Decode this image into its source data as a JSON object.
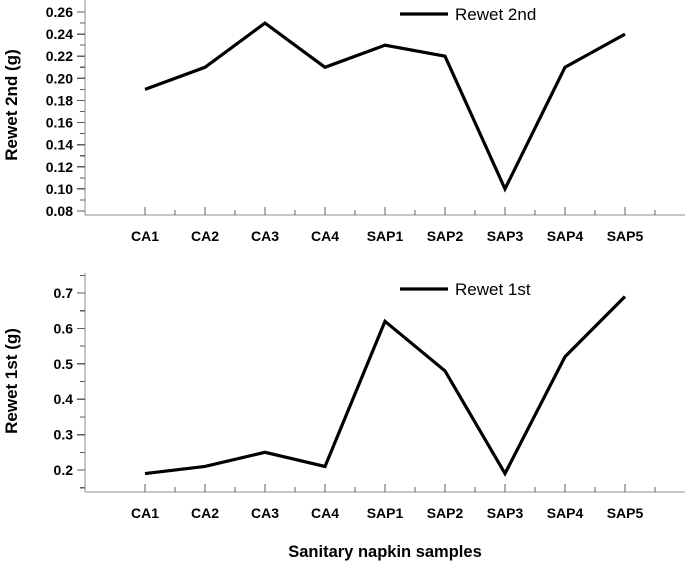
{
  "figure": {
    "background": "#ffffff"
  },
  "colors": {
    "series": "#000000",
    "axis": "#8f8f8f",
    "tick": "#5e5e5e",
    "text": "#000000"
  },
  "chart_data": [
    {
      "type": "line",
      "panel": "top",
      "legend": "Rewet 2nd",
      "ylabel": "Rewet 2nd (g)",
      "xlabel": "",
      "categories": [
        "CA1",
        "CA2",
        "CA3",
        "CA4",
        "SAP1",
        "SAP2",
        "SAP3",
        "SAP4",
        "SAP5"
      ],
      "values": [
        0.19,
        0.21,
        0.25,
        0.21,
        0.23,
        0.22,
        0.1,
        0.21,
        0.24
      ],
      "ylim": [
        0.08,
        0.26
      ],
      "yticks": [
        "0.08",
        "0.10",
        "0.12",
        "0.14",
        "0.16",
        "0.18",
        "0.20",
        "0.22",
        "0.24",
        "0.26"
      ],
      "yminor": [
        0.09,
        0.11,
        0.13,
        0.15,
        0.17,
        0.19,
        0.21,
        0.23,
        0.25
      ],
      "grid": false,
      "legend_position": "top-center-right"
    },
    {
      "type": "line",
      "panel": "bottom",
      "legend": "Rewet 1st",
      "ylabel": "Rewet 1st (g)",
      "xlabel": "Sanitary napkin samples",
      "categories": [
        "CA1",
        "CA2",
        "CA3",
        "CA4",
        "SAP1",
        "SAP2",
        "SAP3",
        "SAP4",
        "SAP5"
      ],
      "values": [
        0.19,
        0.21,
        0.25,
        0.21,
        0.62,
        0.48,
        0.19,
        0.52,
        0.69
      ],
      "ylim": [
        0.2,
        0.7
      ],
      "yticks": [
        "0.2",
        "0.3",
        "0.4",
        "0.5",
        "0.6",
        "0.7"
      ],
      "yminor": [
        0.15,
        0.25,
        0.35,
        0.45,
        0.55,
        0.65,
        0.75
      ],
      "grid": false,
      "legend_position": "top-center-right"
    }
  ]
}
